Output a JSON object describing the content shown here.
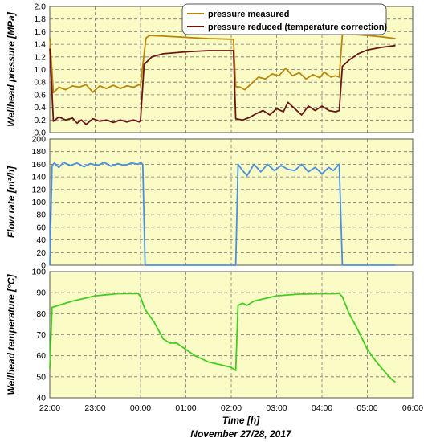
{
  "chart_data": {
    "type": "line",
    "x_axis": {
      "label": "Time [h]",
      "sublabel": "November 27/28, 2017",
      "ticks": [
        "22:00",
        "23:00",
        "00:00",
        "01:00",
        "02:00",
        "03:00",
        "04:00",
        "05:00",
        "06:00"
      ],
      "range_h": [
        0,
        8
      ]
    },
    "panels": [
      {
        "ylabel": "Wellhead pressure [MPa]",
        "ylim": [
          0,
          2.0
        ],
        "yticks": [
          "0.0",
          "0.2",
          "0.4",
          "0.6",
          "0.8",
          "1.0",
          "1.2",
          "1.4",
          "1.6",
          "1.8",
          "2.0"
        ],
        "grid": true,
        "legend": "top-center",
        "series": [
          {
            "name": "pressure measured",
            "color": "#b8860b",
            "points": [
              [
                0,
                1.5
              ],
              [
                0.08,
                0.63
              ],
              [
                0.2,
                0.72
              ],
              [
                0.35,
                0.68
              ],
              [
                0.5,
                0.74
              ],
              [
                0.65,
                0.72
              ],
              [
                0.8,
                0.76
              ],
              [
                0.95,
                0.64
              ],
              [
                1.1,
                0.74
              ],
              [
                1.25,
                0.7
              ],
              [
                1.4,
                0.75
              ],
              [
                1.55,
                0.7
              ],
              [
                1.7,
                0.74
              ],
              [
                1.85,
                0.72
              ],
              [
                1.97,
                0.76
              ],
              [
                2.0,
                0.75
              ],
              [
                2.12,
                1.5
              ],
              [
                2.2,
                1.54
              ],
              [
                2.5,
                1.53
              ],
              [
                3.0,
                1.51
              ],
              [
                3.5,
                1.49
              ],
              [
                4.0,
                1.48
              ],
              [
                4.05,
                1.48
              ],
              [
                4.1,
                0.73
              ],
              [
                4.2,
                0.72
              ],
              [
                4.3,
                0.68
              ],
              [
                4.45,
                0.78
              ],
              [
                4.6,
                0.88
              ],
              [
                4.75,
                0.85
              ],
              [
                4.9,
                0.93
              ],
              [
                5.05,
                0.9
              ],
              [
                5.2,
                1.02
              ],
              [
                5.35,
                0.9
              ],
              [
                5.5,
                0.95
              ],
              [
                5.65,
                0.85
              ],
              [
                5.8,
                0.92
              ],
              [
                5.95,
                0.87
              ],
              [
                6.05,
                0.96
              ],
              [
                6.2,
                0.88
              ],
              [
                6.3,
                0.9
              ],
              [
                6.38,
                0.88
              ],
              [
                6.45,
                1.55
              ],
              [
                6.6,
                1.56
              ],
              [
                7.0,
                1.54
              ],
              [
                7.3,
                1.52
              ],
              [
                7.62,
                1.49
              ]
            ]
          },
          {
            "name": "pressure reduced (temperature correction)",
            "color": "#6b1414",
            "points": [
              [
                0,
                1.33
              ],
              [
                0.08,
                0.18
              ],
              [
                0.2,
                0.25
              ],
              [
                0.35,
                0.2
              ],
              [
                0.5,
                0.23
              ],
              [
                0.6,
                0.15
              ],
              [
                0.7,
                0.2
              ],
              [
                0.8,
                0.13
              ],
              [
                0.95,
                0.22
              ],
              [
                1.1,
                0.18
              ],
              [
                1.25,
                0.2
              ],
              [
                1.4,
                0.16
              ],
              [
                1.55,
                0.2
              ],
              [
                1.7,
                0.17
              ],
              [
                1.85,
                0.2
              ],
              [
                1.97,
                0.17
              ],
              [
                2.0,
                0.2
              ],
              [
                2.08,
                1.08
              ],
              [
                2.25,
                1.2
              ],
              [
                2.5,
                1.25
              ],
              [
                3.0,
                1.28
              ],
              [
                3.5,
                1.3
              ],
              [
                4.0,
                1.3
              ],
              [
                4.05,
                1.3
              ],
              [
                4.1,
                0.22
              ],
              [
                4.25,
                0.2
              ],
              [
                4.4,
                0.24
              ],
              [
                4.55,
                0.3
              ],
              [
                4.7,
                0.35
              ],
              [
                4.85,
                0.28
              ],
              [
                5.0,
                0.38
              ],
              [
                5.15,
                0.33
              ],
              [
                5.25,
                0.48
              ],
              [
                5.4,
                0.38
              ],
              [
                5.55,
                0.28
              ],
              [
                5.7,
                0.42
              ],
              [
                5.85,
                0.35
              ],
              [
                6.0,
                0.42
              ],
              [
                6.15,
                0.35
              ],
              [
                6.3,
                0.33
              ],
              [
                6.38,
                0.35
              ],
              [
                6.45,
                1.05
              ],
              [
                6.6,
                1.15
              ],
              [
                6.8,
                1.25
              ],
              [
                7.0,
                1.31
              ],
              [
                7.3,
                1.35
              ],
              [
                7.62,
                1.38
              ]
            ]
          }
        ]
      },
      {
        "ylabel": "Flow rate [m³/h]",
        "ylim": [
          0,
          200
        ],
        "yticks": [
          "0",
          "20",
          "40",
          "60",
          "80",
          "100",
          "120",
          "140",
          "160",
          "180",
          "200"
        ],
        "grid": true,
        "series": [
          {
            "name": "",
            "color": "#4a90e2",
            "points": [
              [
                0,
                0
              ],
              [
                0.05,
                158
              ],
              [
                0.1,
                162
              ],
              [
                0.2,
                155
              ],
              [
                0.3,
                163
              ],
              [
                0.45,
                158
              ],
              [
                0.6,
                162
              ],
              [
                0.75,
                156
              ],
              [
                0.9,
                161
              ],
              [
                1.05,
                158
              ],
              [
                1.2,
                163
              ],
              [
                1.35,
                157
              ],
              [
                1.5,
                161
              ],
              [
                1.65,
                158
              ],
              [
                1.8,
                162
              ],
              [
                1.95,
                160
              ],
              [
                2.0,
                163
              ],
              [
                2.05,
                160
              ],
              [
                2.1,
                0
              ],
              [
                2.2,
                0
              ],
              [
                3.0,
                0
              ],
              [
                4.0,
                0
              ],
              [
                4.1,
                0
              ],
              [
                4.15,
                160
              ],
              [
                4.25,
                150
              ],
              [
                4.35,
                142
              ],
              [
                4.5,
                160
              ],
              [
                4.65,
                148
              ],
              [
                4.8,
                160
              ],
              [
                4.95,
                150
              ],
              [
                5.1,
                158
              ],
              [
                5.25,
                152
              ],
              [
                5.4,
                150
              ],
              [
                5.55,
                160
              ],
              [
                5.7,
                148
              ],
              [
                5.85,
                155
              ],
              [
                6.0,
                145
              ],
              [
                6.15,
                155
              ],
              [
                6.25,
                150
              ],
              [
                6.35,
                158
              ],
              [
                6.38,
                160
              ],
              [
                6.45,
                0
              ],
              [
                7.0,
                0
              ],
              [
                7.62,
                0
              ]
            ]
          }
        ]
      },
      {
        "ylabel": "Wellhead temperature [°C]",
        "ylim": [
          40,
          100
        ],
        "yticks": [
          "40",
          "50",
          "60",
          "70",
          "80",
          "90",
          "100"
        ],
        "grid": true,
        "series": [
          {
            "name": "",
            "color": "#44cc22",
            "points": [
              [
                0,
                54
              ],
              [
                0.05,
                83
              ],
              [
                0.2,
                84
              ],
              [
                0.5,
                86
              ],
              [
                1.0,
                88.5
              ],
              [
                1.5,
                89.5
              ],
              [
                1.95,
                89.6
              ],
              [
                2.0,
                88
              ],
              [
                2.1,
                82
              ],
              [
                2.3,
                76
              ],
              [
                2.5,
                68
              ],
              [
                2.65,
                66
              ],
              [
                2.8,
                66
              ],
              [
                3.0,
                63
              ],
              [
                3.2,
                60
              ],
              [
                3.5,
                57
              ],
              [
                3.8,
                55.5
              ],
              [
                4.0,
                54.5
              ],
              [
                4.1,
                53
              ],
              [
                4.15,
                84
              ],
              [
                4.25,
                85
              ],
              [
                4.35,
                84
              ],
              [
                4.5,
                86
              ],
              [
                5.0,
                88.5
              ],
              [
                5.5,
                89.3
              ],
              [
                6.0,
                89.5
              ],
              [
                6.3,
                89.5
              ],
              [
                6.38,
                89.7
              ],
              [
                6.45,
                88
              ],
              [
                6.6,
                80
              ],
              [
                6.8,
                72
              ],
              [
                7.0,
                63
              ],
              [
                7.2,
                57
              ],
              [
                7.4,
                52
              ],
              [
                7.55,
                48.5
              ],
              [
                7.62,
                47.5
              ]
            ]
          }
        ]
      }
    ]
  }
}
